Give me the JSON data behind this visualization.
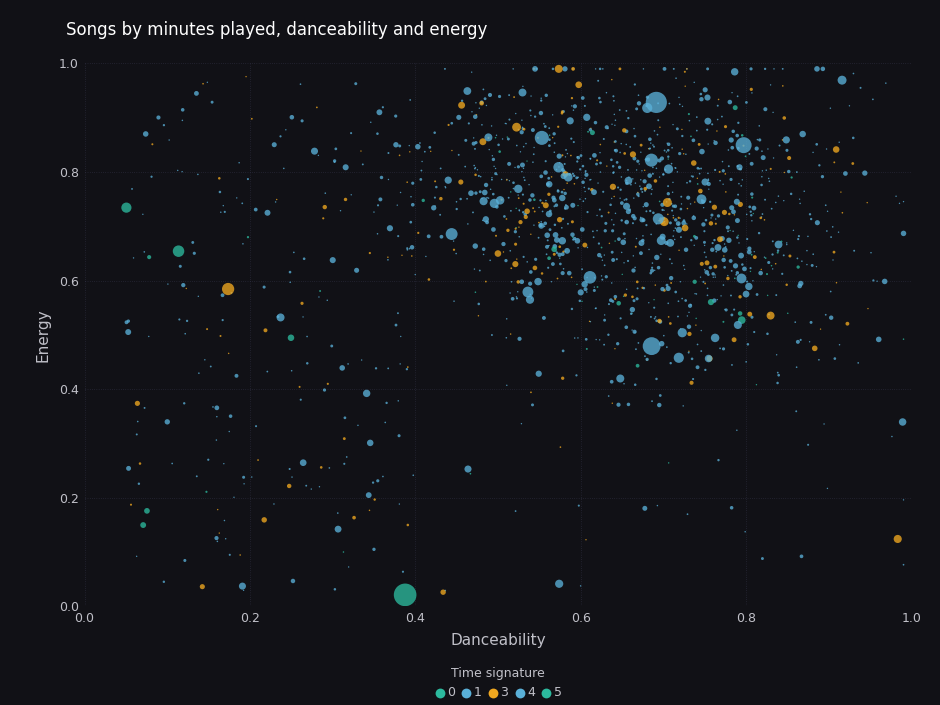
{
  "title": "Songs by minutes played, danceability and energy",
  "xlabel": "Danceability",
  "ylabel": "Energy",
  "legend_title": "Time signature",
  "legend_labels": [
    "0",
    "1",
    "3",
    "4",
    "5"
  ],
  "bg_color": "#111116",
  "plot_bg": "#111116",
  "text_color": "#c0c0c8",
  "xlim": [
    0.0,
    1.0
  ],
  "ylim": [
    0.0,
    1.0
  ],
  "xticks": [
    0.0,
    0.2,
    0.4,
    0.6,
    0.8,
    1.0
  ],
  "yticks": [
    0.0,
    0.2,
    0.4,
    0.6,
    0.8,
    1.0
  ],
  "n_points": 1500,
  "seed": 7,
  "time_sig_colors": {
    "0": "#2cba9e",
    "1": "#5ab0d8",
    "3": "#f0a820",
    "4": "#5ab0d8",
    "5": "#2cba9e"
  },
  "time_sig_weights": [
    0.01,
    0.05,
    0.15,
    0.75,
    0.04
  ]
}
